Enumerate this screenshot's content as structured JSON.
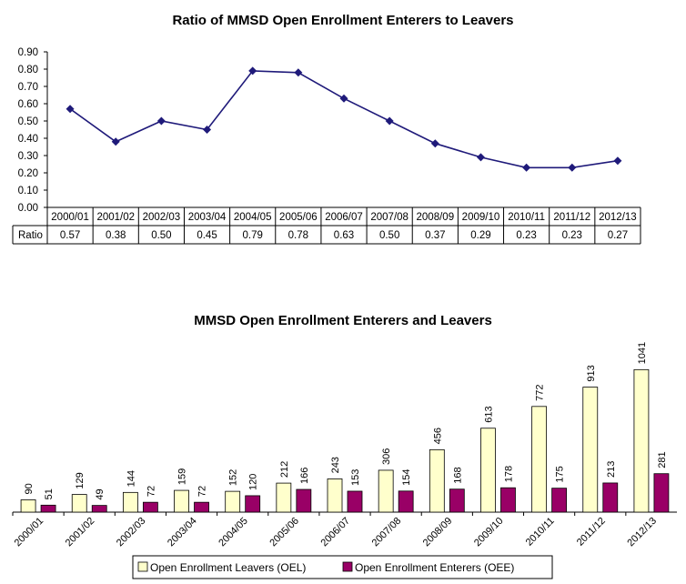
{
  "chart_data": [
    {
      "type": "line",
      "title": "Ratio of MMSD Open Enrollment Enterers to Leavers",
      "categories": [
        "2000/01",
        "2001/02",
        "2002/03",
        "2003/04",
        "2004/05",
        "2005/06",
        "2006/07",
        "2007/08",
        "2008/09",
        "2009/10",
        "2010/11",
        "2011/12",
        "2012/13"
      ],
      "series": [
        {
          "name": "Ratio",
          "values": [
            0.57,
            0.38,
            0.5,
            0.45,
            0.79,
            0.78,
            0.63,
            0.5,
            0.37,
            0.29,
            0.23,
            0.23,
            0.27
          ]
        }
      ],
      "value_labels": [
        "0.57",
        "0.38",
        "0.50",
        "0.45",
        "0.79",
        "0.78",
        "0.63",
        "0.50",
        "0.37",
        "0.29",
        "0.23",
        "0.23",
        "0.27"
      ],
      "ylim": [
        0,
        0.9
      ],
      "yticks": [
        "0.00",
        "0.10",
        "0.20",
        "0.30",
        "0.40",
        "0.50",
        "0.60",
        "0.70",
        "0.80",
        "0.90"
      ],
      "data_table": true,
      "grid": false,
      "colors": {
        "line": "#1f1a7a",
        "marker": "#1f1a7a"
      }
    },
    {
      "type": "bar",
      "title": "MMSD Open Enrollment Enterers and Leavers",
      "categories": [
        "2000/01",
        "2001/02",
        "2002/03",
        "2003/04",
        "2004/05",
        "2005/06",
        "2006/07",
        "2007/08",
        "2008/09",
        "2009/10",
        "2010/11",
        "2011/12",
        "2012/13"
      ],
      "series": [
        {
          "name": "Open Enrollment Leavers (OEL)",
          "values": [
            90,
            129,
            144,
            159,
            152,
            212,
            243,
            306,
            456,
            613,
            772,
            913,
            1041
          ],
          "color": "#ffffcc"
        },
        {
          "name": "Open Enrollment Enterers (OEE)",
          "values": [
            51,
            49,
            72,
            72,
            120,
            166,
            153,
            154,
            168,
            178,
            175,
            213,
            281
          ],
          "color": "#990066"
        }
      ],
      "ylim": [
        0,
        1100
      ],
      "grid": false,
      "legend": "bottom"
    }
  ]
}
